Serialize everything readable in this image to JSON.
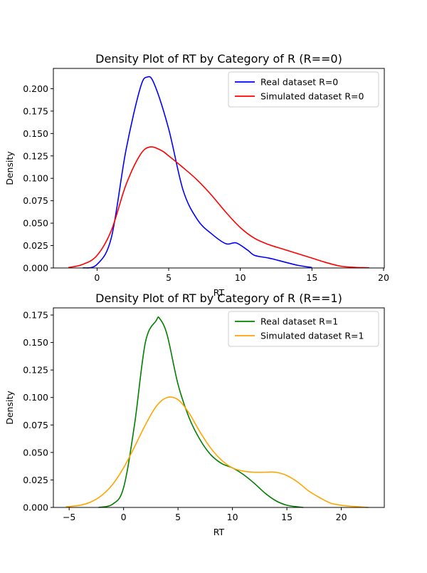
{
  "chart_data": [
    {
      "type": "line",
      "title": "Density Plot of RT by Category of R (R==0)",
      "xlabel": "RT",
      "ylabel": "Density",
      "xlim": [
        -3.05,
        20.05
      ],
      "ylim": [
        0,
        0.2226
      ],
      "xticks": [
        0,
        5,
        10,
        15,
        20
      ],
      "yticks": [
        0.0,
        0.025,
        0.05,
        0.075,
        0.1,
        0.125,
        0.15,
        0.175,
        0.2
      ],
      "ytick_labels": [
        "0.000",
        "0.025",
        "0.050",
        "0.075",
        "0.100",
        "0.125",
        "0.150",
        "0.175",
        "0.200"
      ],
      "legend_position": "top-right",
      "grid": false,
      "series": [
        {
          "name": "Real dataset R=0",
          "color": "#0000ff",
          "x": [
            -1,
            0,
            1,
            2,
            3,
            3.5,
            4,
            5,
            6,
            7,
            8,
            9,
            9.7,
            10.5,
            11,
            12,
            13,
            14,
            15
          ],
          "y": [
            0.0,
            0.004,
            0.034,
            0.13,
            0.2,
            0.213,
            0.205,
            0.155,
            0.087,
            0.054,
            0.038,
            0.027,
            0.028,
            0.02,
            0.014,
            0.011,
            0.007,
            0.003,
            0.0005
          ]
        },
        {
          "name": "Simulated dataset R=0",
          "color": "#ff0000",
          "x": [
            -2,
            -1,
            0,
            1,
            2,
            3,
            3.7,
            4.5,
            5,
            6,
            7,
            8,
            9,
            10,
            11,
            12,
            13,
            14,
            15,
            16,
            17,
            18,
            19
          ],
          "y": [
            0.0005,
            0.004,
            0.014,
            0.042,
            0.092,
            0.126,
            0.135,
            0.131,
            0.125,
            0.112,
            0.098,
            0.081,
            0.062,
            0.045,
            0.033,
            0.026,
            0.021,
            0.016,
            0.011,
            0.006,
            0.002,
            0.0007,
            0.0002
          ]
        }
      ]
    },
    {
      "type": "line",
      "title": "Density Plot of RT by Category of R (R==1)",
      "xlabel": "RT",
      "ylabel": "Density",
      "xlim": [
        -6.45,
        23.95
      ],
      "ylim": [
        0,
        0.1815
      ],
      "xticks": [
        -5,
        0,
        5,
        10,
        15,
        20
      ],
      "yticks": [
        0.0,
        0.025,
        0.05,
        0.075,
        0.1,
        0.125,
        0.15,
        0.175
      ],
      "ytick_labels": [
        "0.000",
        "0.025",
        "0.050",
        "0.075",
        "0.100",
        "0.125",
        "0.150",
        "0.175"
      ],
      "legend_position": "top-right",
      "grid": false,
      "series": [
        {
          "name": "Real dataset R=1",
          "color": "#008000",
          "x": [
            -2.3,
            -1,
            0,
            1,
            2,
            3,
            3.3,
            4,
            5,
            6,
            7,
            8,
            9,
            10,
            11,
            12,
            13,
            14,
            15,
            16,
            16.5
          ],
          "y": [
            0.0,
            0.003,
            0.018,
            0.075,
            0.15,
            0.17,
            0.172,
            0.157,
            0.112,
            0.082,
            0.062,
            0.048,
            0.04,
            0.036,
            0.03,
            0.022,
            0.013,
            0.006,
            0.002,
            0.0005,
            0.0
          ]
        },
        {
          "name": "Simulated dataset R=1",
          "color": "#ffa500",
          "x": [
            -5.3,
            -4,
            -3,
            -2,
            -1,
            0,
            1,
            2,
            3,
            4,
            5,
            6,
            7,
            8,
            9,
            10,
            11,
            12,
            13,
            14,
            15,
            16,
            17,
            18,
            19,
            20,
            21,
            22.5
          ],
          "y": [
            0.0005,
            0.002,
            0.005,
            0.011,
            0.021,
            0.036,
            0.055,
            0.075,
            0.092,
            0.1,
            0.098,
            0.086,
            0.069,
            0.054,
            0.043,
            0.036,
            0.033,
            0.032,
            0.032,
            0.032,
            0.029,
            0.023,
            0.015,
            0.009,
            0.004,
            0.002,
            0.001,
            0.0
          ]
        }
      ]
    }
  ]
}
